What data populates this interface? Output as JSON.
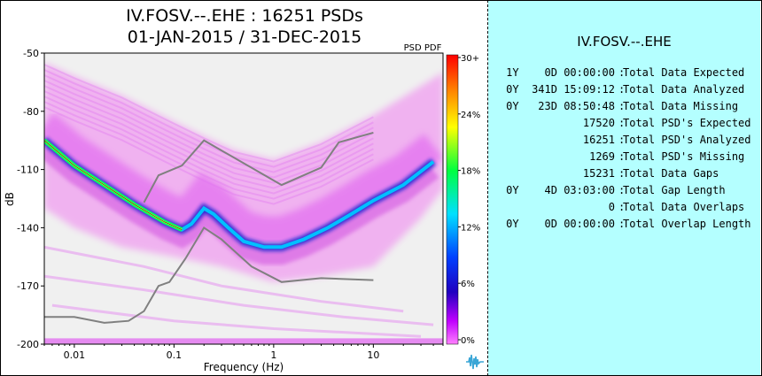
{
  "title_line1": "IV.FOSV.--.EHE : 16251 PSDs",
  "title_line2": "01-JAN-2015 / 31-DEC-2015",
  "colorbar_title": "PSD PDF",
  "chart_data": {
    "type": "heatmap",
    "xlabel": "Frequency (Hz)",
    "ylabel": "dB",
    "x_scale": "log",
    "xlim": [
      0.005,
      50
    ],
    "ylim": [
      -200,
      -50
    ],
    "x_ticks": [
      0.01,
      0.1,
      1,
      10
    ],
    "x_tick_labels": [
      "0.01",
      "0.1",
      "1",
      "10"
    ],
    "y_ticks": [
      -50,
      -80,
      -110,
      -140,
      -170,
      -200
    ],
    "y_tick_labels": [
      "-50",
      "-80",
      "-110",
      "-140",
      "-170",
      "-200"
    ],
    "colorbar_ticks": [
      "30+",
      "24%",
      "18%",
      "12%",
      "6%",
      "0%"
    ],
    "colorbar_colors": [
      "#ff0000",
      "#ff8000",
      "#ffff00",
      "#00ff40",
      "#00e0ff",
      "#0040ff",
      "#0000c0",
      "#ff00ff"
    ],
    "background_color": "#f0f0f0",
    "mode_curve": {
      "name": "mode",
      "points": [
        [
          0.005,
          -95
        ],
        [
          0.01,
          -108
        ],
        [
          0.02,
          -118
        ],
        [
          0.04,
          -128
        ],
        [
          0.08,
          -137
        ],
        [
          0.12,
          -141
        ],
        [
          0.15,
          -138
        ],
        [
          0.2,
          -130
        ],
        [
          0.25,
          -133
        ],
        [
          0.35,
          -140
        ],
        [
          0.5,
          -147
        ],
        [
          0.8,
          -150
        ],
        [
          1.2,
          -150
        ],
        [
          2,
          -146
        ],
        [
          3.5,
          -140
        ],
        [
          6,
          -133
        ],
        [
          10,
          -126
        ],
        [
          20,
          -118
        ],
        [
          40,
          -106
        ]
      ]
    },
    "high_noise_model": {
      "name": "NHNM",
      "points": [
        [
          0.05,
          -127
        ],
        [
          0.07,
          -113
        ],
        [
          0.12,
          -108
        ],
        [
          0.2,
          -95
        ],
        [
          1.2,
          -118
        ],
        [
          3,
          -109
        ],
        [
          4.5,
          -96
        ],
        [
          10,
          -91
        ]
      ]
    },
    "low_noise_model": {
      "name": "NLNM",
      "points": [
        [
          0.005,
          -186
        ],
        [
          0.01,
          -186
        ],
        [
          0.02,
          -189
        ],
        [
          0.035,
          -188
        ],
        [
          0.05,
          -183
        ],
        [
          0.07,
          -170
        ],
        [
          0.09,
          -168
        ],
        [
          0.13,
          -156
        ],
        [
          0.2,
          -140
        ],
        [
          0.3,
          -146
        ],
        [
          0.6,
          -160
        ],
        [
          1.2,
          -168
        ],
        [
          3,
          -166
        ],
        [
          10,
          -167
        ]
      ]
    }
  },
  "stats_panel": {
    "title": "IV.FOSV.--.EHE",
    "rows": [
      {
        "value": "1Y    0D 00:00:00",
        "label": "Total Data Expected"
      },
      {
        "value": "0Y  341D 15:09:12",
        "label": "Total Data Analyzed"
      },
      {
        "value": "0Y   23D 08:50:48",
        "label": "Total Data Missing"
      },
      {
        "value": "17520",
        "label": "Total PSD's Expected"
      },
      {
        "value": "16251",
        "label": "Total PSD's Analyzed"
      },
      {
        "value": "1269",
        "label": "Total PSD's Missing"
      },
      {
        "value": "15231",
        "label": "Total Data Gaps"
      },
      {
        "value": "0Y    4D 03:03:00",
        "label": "Total Gap Length"
      },
      {
        "value": "0",
        "label": "Total Data Overlaps"
      },
      {
        "value": "0Y    0D 00:00:00",
        "label": "Total Overlap Length"
      }
    ]
  },
  "logo_icon": "seismic-wave-icon"
}
